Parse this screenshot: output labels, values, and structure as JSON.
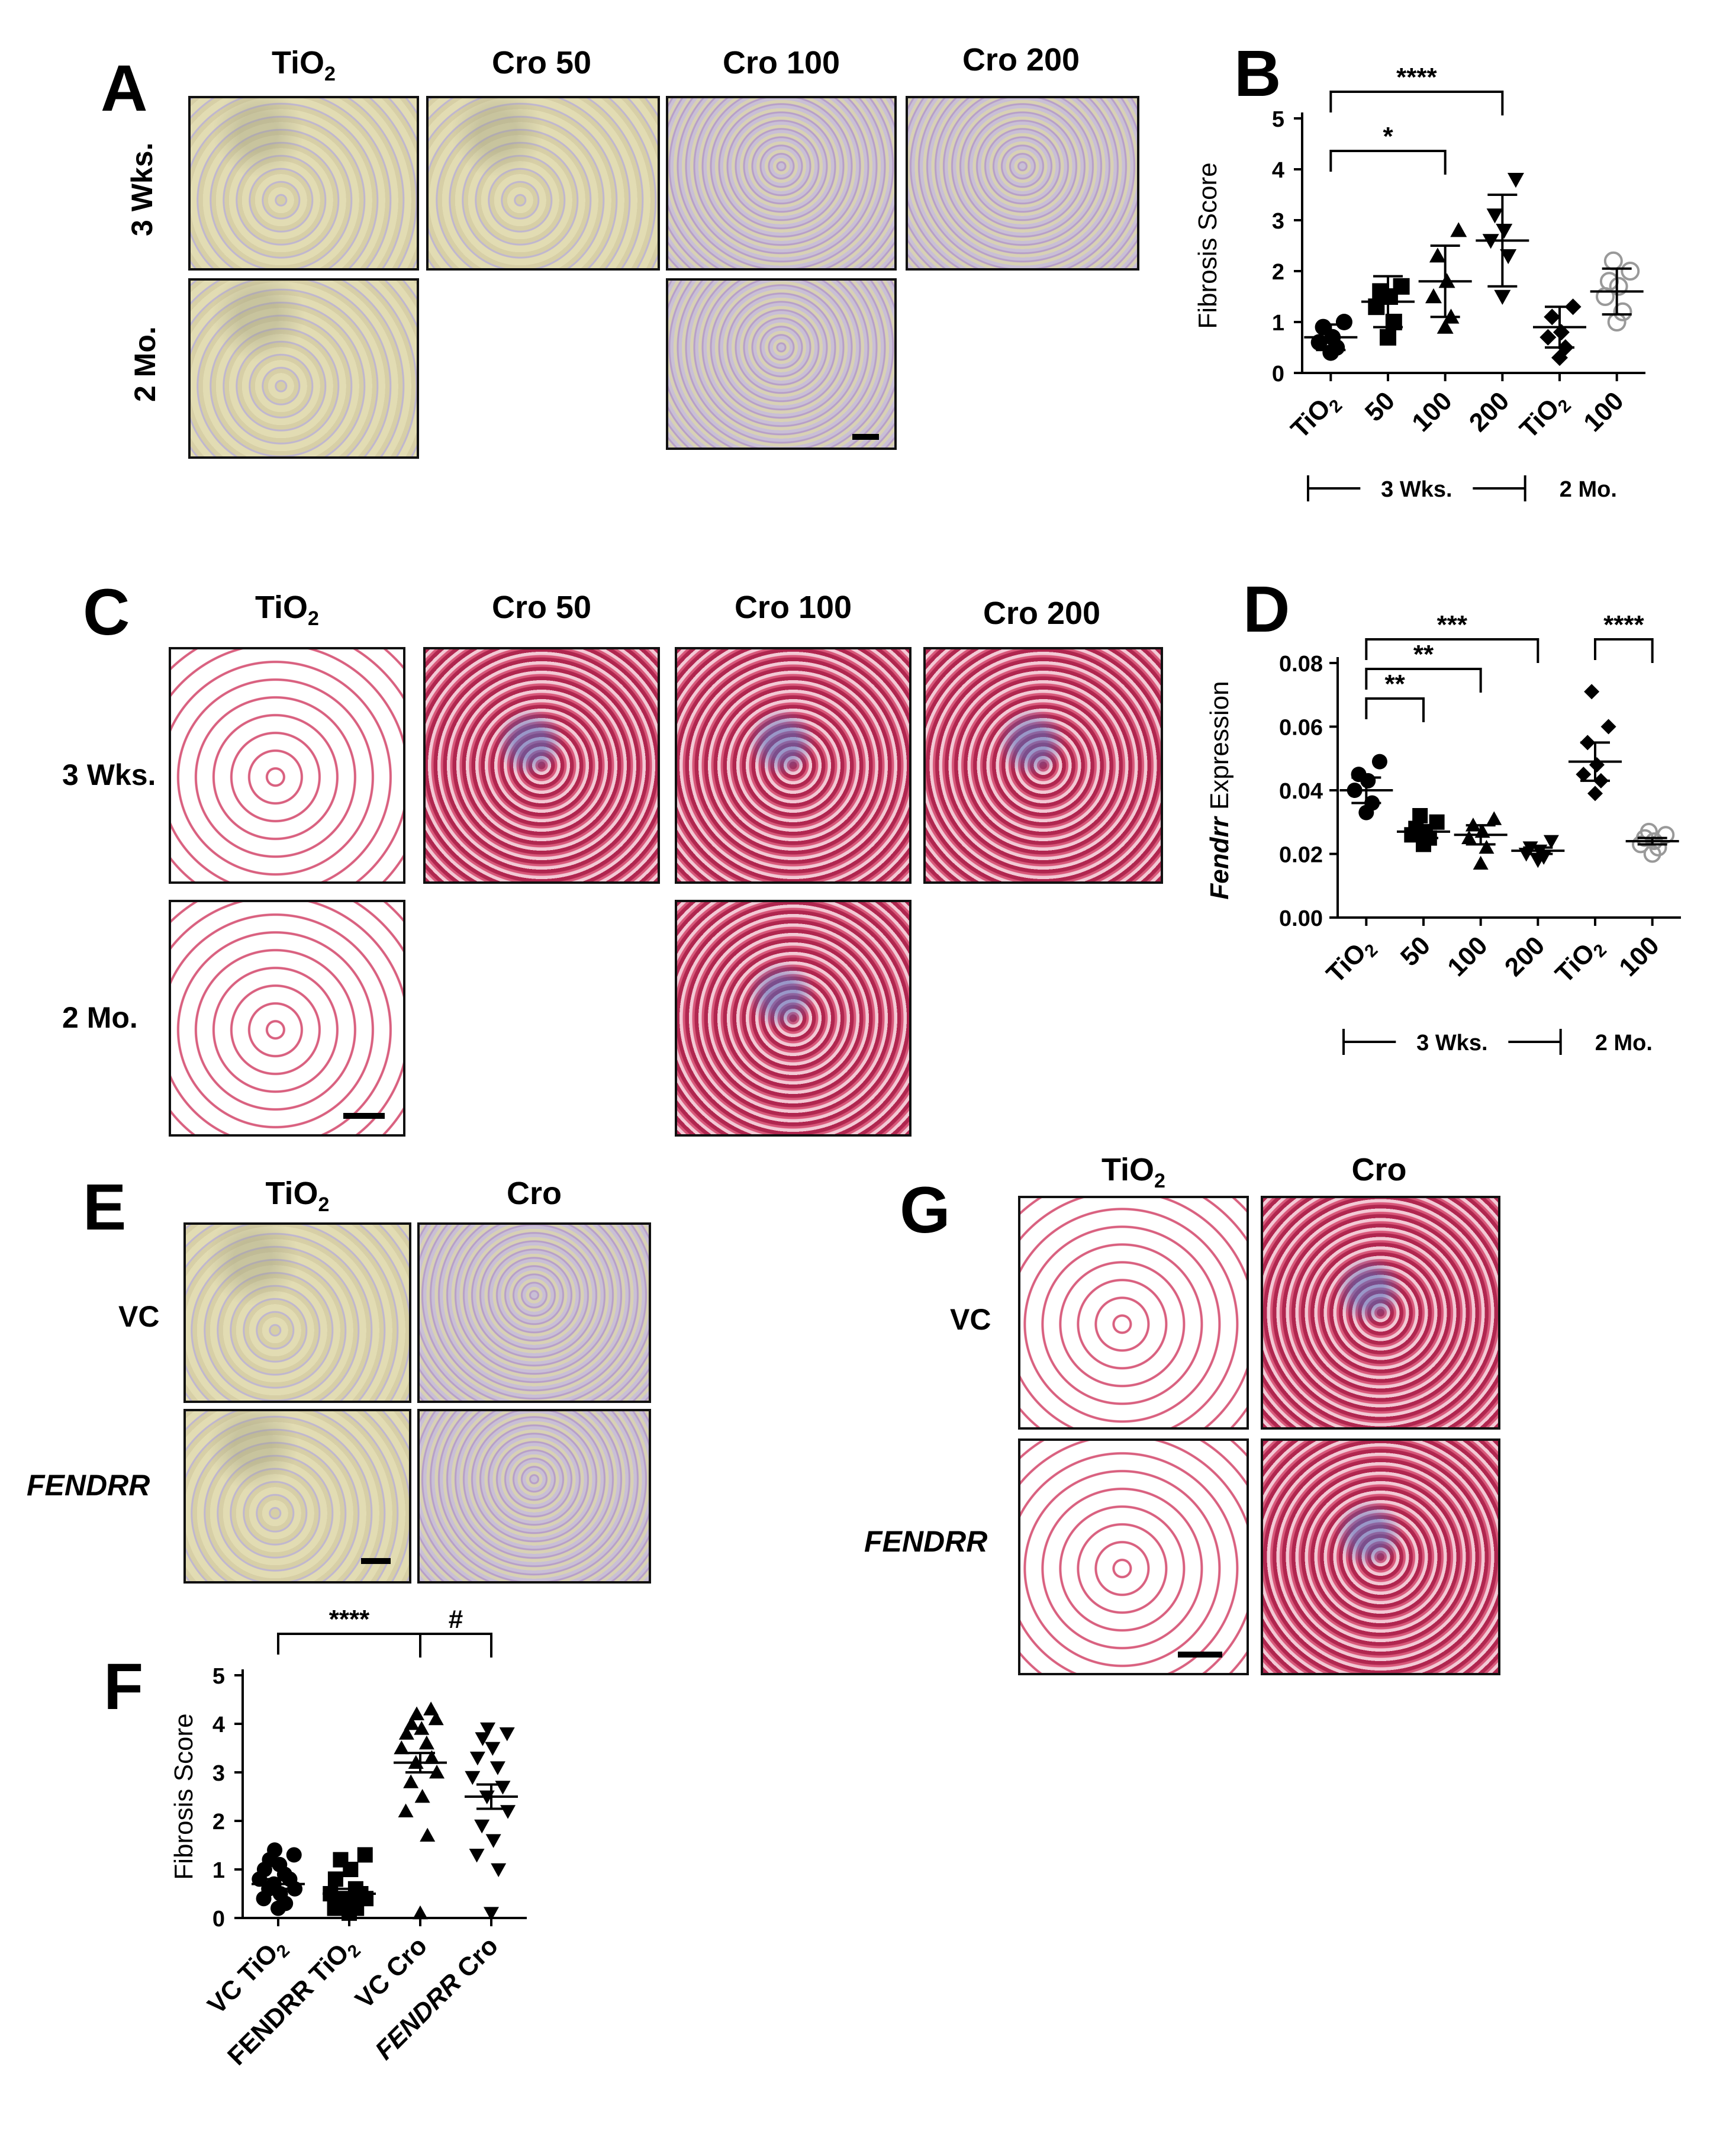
{
  "panels": {
    "A": {
      "letter": "A",
      "cols": [
        "TiO2",
        "Cro 50",
        "Cro 100",
        "Cro 200"
      ],
      "rows": [
        "3 Wks.",
        "2 Mo."
      ]
    },
    "C": {
      "letter": "C",
      "cols": [
        "TiO2",
        "Cro 50",
        "Cro 100",
        "Cro 200"
      ],
      "rows": [
        "3 Wks.",
        "2 Mo."
      ]
    },
    "E": {
      "letter": "E",
      "cols": [
        "TiO2",
        "Cro"
      ],
      "rows": [
        "VC",
        "FENDRR"
      ]
    },
    "G": {
      "letter": "G",
      "cols": [
        "TiO2",
        "Cro"
      ],
      "rows": [
        "VC",
        "FENDRR"
      ]
    },
    "B": {
      "letter": "B"
    },
    "D": {
      "letter": "D"
    },
    "F": {
      "letter": "F"
    }
  },
  "chart_data": [
    {
      "panel": "B",
      "type": "scatter",
      "ylabel": "Fibrosis Score",
      "ylim": [
        0,
        5
      ],
      "yticks": [
        "0",
        "1",
        "2",
        "3",
        "4",
        "5"
      ],
      "categories": [
        "TiO2",
        "50",
        "100",
        "200",
        "TiO2",
        "100"
      ],
      "groups": [
        {
          "label": "3 Wks.",
          "span": [
            0,
            3
          ]
        },
        {
          "label": "2 Mo.",
          "span": [
            4,
            5
          ]
        }
      ],
      "means": [
        0.7,
        1.4,
        1.8,
        2.6,
        0.9,
        1.6
      ],
      "errors": [
        0.25,
        0.5,
        0.7,
        0.9,
        0.4,
        0.45
      ],
      "points": [
        [
          0.4,
          0.5,
          0.6,
          0.7,
          0.9,
          1.0
        ],
        [
          0.7,
          1.0,
          1.3,
          1.5,
          1.6,
          1.7
        ],
        [
          0.9,
          1.1,
          1.5,
          1.8,
          2.3,
          2.8
        ],
        [
          1.5,
          2.3,
          2.6,
          2.8,
          3.1,
          3.8
        ],
        [
          0.3,
          0.5,
          0.7,
          0.8,
          1.1,
          1.3
        ],
        [
          1.0,
          1.2,
          1.5,
          1.7,
          1.8,
          2.0,
          2.2
        ]
      ],
      "markers": [
        "circle",
        "square",
        "triangle-up",
        "triangle-down",
        "diamond",
        "circle-open"
      ],
      "significance": [
        {
          "from": 0,
          "to": 3,
          "label": "****"
        },
        {
          "from": 0,
          "to": 2,
          "label": "*"
        }
      ]
    },
    {
      "panel": "D",
      "type": "scatter",
      "ylabel": "Fendrr Expression",
      "ylim": [
        0,
        0.08
      ],
      "yticks": [
        "0.00",
        "0.02",
        "0.04",
        "0.06",
        "0.08"
      ],
      "categories": [
        "TiO2",
        "50",
        "100",
        "200",
        "TiO2",
        "100"
      ],
      "groups": [
        {
          "label": "3 Wks.",
          "span": [
            0,
            3
          ]
        },
        {
          "label": "2 Mo.",
          "span": [
            4,
            5
          ]
        }
      ],
      "means": [
        0.04,
        0.027,
        0.026,
        0.021,
        0.049,
        0.024
      ],
      "errors": [
        0.004,
        0.002,
        0.003,
        0.001,
        0.006,
        0.001
      ],
      "points": [
        [
          0.033,
          0.036,
          0.04,
          0.043,
          0.045,
          0.049
        ],
        [
          0.023,
          0.025,
          0.026,
          0.027,
          0.028,
          0.03,
          0.032
        ],
        [
          0.017,
          0.022,
          0.025,
          0.027,
          0.029,
          0.031
        ],
        [
          0.018,
          0.019,
          0.02,
          0.021,
          0.022,
          0.024
        ],
        [
          0.039,
          0.043,
          0.045,
          0.048,
          0.055,
          0.06,
          0.071
        ],
        [
          0.02,
          0.022,
          0.023,
          0.024,
          0.025,
          0.026,
          0.027
        ]
      ],
      "markers": [
        "circle",
        "square",
        "triangle-up",
        "triangle-down",
        "diamond",
        "circle-open"
      ],
      "significance": [
        {
          "from": 0,
          "to": 1,
          "label": "**"
        },
        {
          "from": 0,
          "to": 2,
          "label": "**"
        },
        {
          "from": 0,
          "to": 3,
          "label": "***"
        },
        {
          "from": 4,
          "to": 5,
          "label": "****"
        }
      ]
    },
    {
      "panel": "F",
      "type": "scatter",
      "ylabel": "Fibrosis Score",
      "ylim": [
        0,
        5
      ],
      "yticks": [
        "0",
        "1",
        "2",
        "3",
        "4",
        "5"
      ],
      "categories": [
        "VC TiO2",
        "FENDRR TiO2",
        "VC Cro",
        "FENDRR Cro"
      ],
      "means": [
        0.7,
        0.5,
        3.2,
        2.5
      ],
      "errors": [
        0.1,
        0.1,
        0.2,
        0.25
      ],
      "points": [
        [
          0.2,
          0.3,
          0.4,
          0.5,
          0.6,
          0.6,
          0.7,
          0.8,
          0.8,
          0.9,
          1.0,
          1.1,
          1.2,
          1.3,
          1.4
        ],
        [
          0.1,
          0.2,
          0.2,
          0.3,
          0.3,
          0.4,
          0.4,
          0.5,
          0.5,
          0.6,
          0.8,
          1.0,
          1.2,
          1.3
        ],
        [
          0.1,
          1.7,
          2.2,
          2.5,
          2.8,
          3.0,
          3.2,
          3.3,
          3.5,
          3.6,
          3.8,
          3.9,
          4.0,
          4.1,
          4.2,
          4.3
        ],
        [
          0.1,
          1.0,
          1.3,
          1.6,
          1.9,
          2.2,
          2.5,
          2.7,
          2.9,
          3.1,
          3.3,
          3.5,
          3.7,
          3.8,
          3.9
        ]
      ],
      "markers": [
        "circle",
        "square",
        "triangle-up",
        "triangle-down"
      ],
      "significance": [
        {
          "from": 0,
          "to": 2,
          "label": "****"
        },
        {
          "from": 2,
          "to": 3,
          "label": "#"
        }
      ]
    }
  ]
}
